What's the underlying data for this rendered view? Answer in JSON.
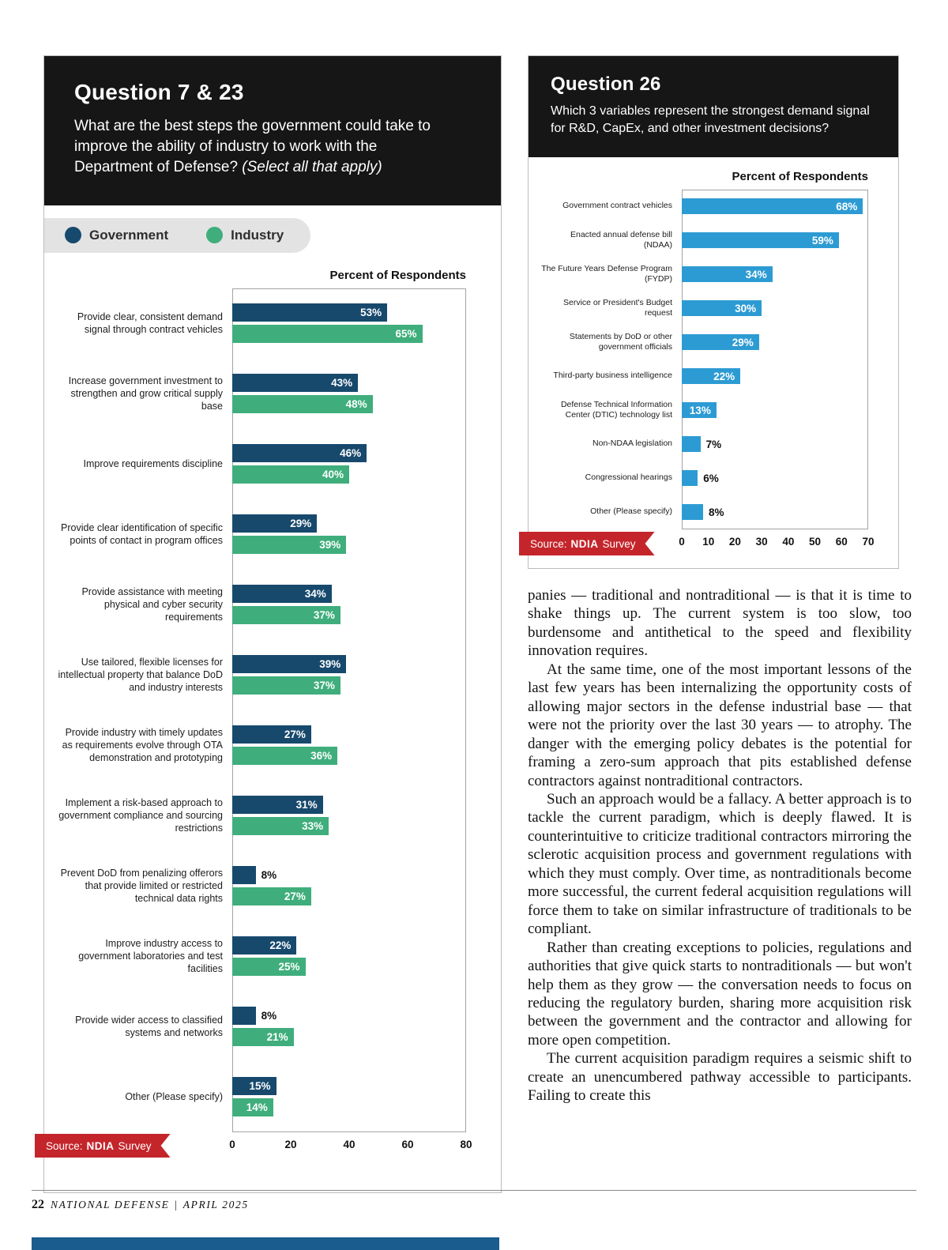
{
  "q7": {
    "title": "Question 7 & 23",
    "question": "What are the best steps the government could take to improve the ability of industry to work with the Department of Defense?",
    "question_note": "(Select all that apply)",
    "legend": {
      "government": "Government",
      "industry": "Industry"
    },
    "axis_title": "Percent of Respondents",
    "source": {
      "prefix": "Source:",
      "brand": "NDIA",
      "suffix": "Survey"
    }
  },
  "q26": {
    "title": "Question 26",
    "question": "Which 3 variables represent the strongest demand signal for R&D, CapEx, and other investment decisions?",
    "axis_title": "Percent of Respondents",
    "source": {
      "prefix": "Source:",
      "brand": "NDIA",
      "suffix": "Survey"
    }
  },
  "chart_data": [
    {
      "type": "bar",
      "orientation": "horizontal",
      "title": "Question 7 & 23",
      "xlabel": "Percent of Respondents",
      "xlim": [
        0,
        80
      ],
      "xticks": [
        0,
        20,
        40,
        60,
        80
      ],
      "grid": false,
      "legend_position": "top-left",
      "categories": [
        "Provide clear, consistent demand signal through contract vehicles",
        "Increase government investment to strengthen and grow critical supply base",
        "Improve requirements discipline",
        "Provide clear identification of specific points of contact in program offices",
        "Provide assistance with meeting physical and cyber security requirements",
        "Use tailored, flexible licenses for intellectual property that balance DoD and industry interests",
        "Provide industry with timely updates as requirements evolve through OTA demonstration and prototyping",
        "Implement a risk-based approach to government compliance and sourcing restrictions",
        "Prevent DoD from penalizing offerors that provide limited or restricted technical data rights",
        "Improve industry access to government laboratories and test facilities",
        "Provide wider access to classified systems and networks",
        "Other (Please specify)"
      ],
      "series": [
        {
          "name": "Government",
          "color": "#17496d",
          "values": [
            53,
            43,
            46,
            29,
            34,
            39,
            27,
            31,
            8,
            22,
            8,
            15
          ]
        },
        {
          "name": "Industry",
          "color": "#3fae7c",
          "values": [
            65,
            48,
            40,
            39,
            37,
            37,
            36,
            33,
            27,
            25,
            21,
            14
          ]
        }
      ]
    },
    {
      "type": "bar",
      "orientation": "horizontal",
      "title": "Question 26",
      "xlabel": "Percent of Respondents",
      "xlim": [
        0,
        70
      ],
      "xticks": [
        0,
        10,
        20,
        30,
        40,
        50,
        60,
        70
      ],
      "grid": false,
      "categories": [
        "Government contract vehicles",
        "Enacted annual defense bill (NDAA)",
        "The Future Years Defense Program (FYDP)",
        "Service or President's Budget request",
        "Statements by DoD or other government officials",
        "Third-party business intelligence",
        "Defense Technical Information Center (DTIC) technology list",
        "Non-NDAA legislation",
        "Congressional hearings",
        "Other (Please specify)"
      ],
      "series": [
        {
          "name": "Respondents",
          "color": "#2d9bd3",
          "values": [
            68,
            59,
            34,
            30,
            29,
            22,
            13,
            7,
            6,
            8
          ]
        }
      ]
    }
  ],
  "article": {
    "paragraphs": [
      "panies — traditional and nontraditional — is that it is time to shake things up. The current system is too slow, too burdensome and antithetical to the speed and flexibility innovation requires.",
      "At the same time, one of the most important lessons of the last few years has been internalizing the opportunity costs of allowing major sectors in the defense industrial base — that were not the priority over the last 30 years — to atrophy. The danger with the emerging policy debates is the potential for framing a zero-sum approach that pits established defense contractors against nontraditional contractors.",
      "Such an approach would be a fallacy. A better approach is to tackle the current paradigm, which is deeply flawed. It is counterintuitive to criticize traditional contractors mirroring the sclerotic acquisition process and government regulations with which they must comply. Over time, as nontraditionals become more successful, the current federal acquisition regulations will force them to take on similar infrastructure of traditionals to be compliant.",
      "Rather than creating exceptions to policies, regulations and authorities that give quick starts to nontraditionals — but won't help them as they grow — the conversation needs to focus on reducing the regulatory burden, sharing more acquisition risk between the government and the contractor and allowing for more open competition.",
      "The current acquisition paradigm requires a seismic shift to create an unencumbered pathway accessible to participants. Failing to create this"
    ]
  },
  "footer": {
    "page_number": "22",
    "magazine": "NATIONAL DEFENSE",
    "divider": "|",
    "issue": "APRIL 2025"
  }
}
